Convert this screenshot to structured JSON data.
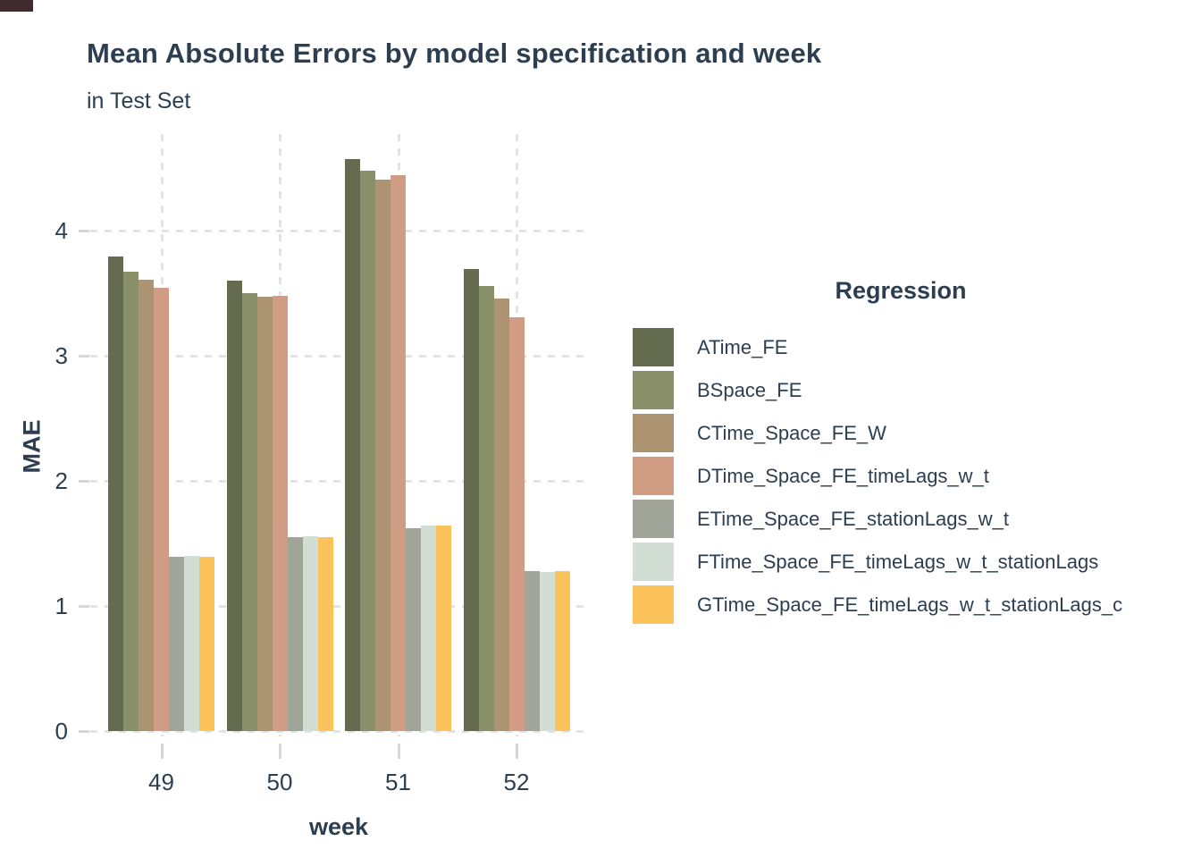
{
  "chart_data": {
    "type": "bar",
    "title": "Mean Absolute Errors by model specification and week",
    "subtitle": "in Test Set",
    "xlabel": "week",
    "ylabel": "MAE",
    "legend_title": "Regression",
    "legend_position": "right",
    "grid": "dashed",
    "categories": [
      "49",
      "50",
      "51",
      "52"
    ],
    "yticks": [
      0,
      1,
      2,
      3,
      4
    ],
    "ylim": [
      0,
      4.78
    ],
    "series": [
      {
        "name": "ATime_FE",
        "color": "#646b4e",
        "values": [
          3.79,
          3.6,
          4.57,
          3.69
        ]
      },
      {
        "name": "BSpace_FE",
        "color": "#8a9069",
        "values": [
          3.67,
          3.5,
          4.48,
          3.56
        ]
      },
      {
        "name": "CTime_Space_FE_W",
        "color": "#ac9473",
        "values": [
          3.61,
          3.47,
          4.41,
          3.46
        ]
      },
      {
        "name": "DTime_Space_FE_timeLags_w_t",
        "color": "#d09c83",
        "values": [
          3.54,
          3.48,
          4.44,
          3.31
        ]
      },
      {
        "name": "ETime_Space_FE_stationLags_w_t",
        "color": "#a1a599",
        "values": [
          1.39,
          1.55,
          1.62,
          1.28
        ]
      },
      {
        "name": "FTime_Space_FE_timeLags_w_t_stationLags",
        "color": "#d2ddd3",
        "values": [
          1.4,
          1.56,
          1.64,
          1.27
        ]
      },
      {
        "name": "GTime_Space_FE_timeLags_w_t_stationLags_c",
        "color": "#fcc35c",
        "values": [
          1.39,
          1.55,
          1.64,
          1.28
        ]
      }
    ],
    "text_color": "#2c3e50"
  }
}
